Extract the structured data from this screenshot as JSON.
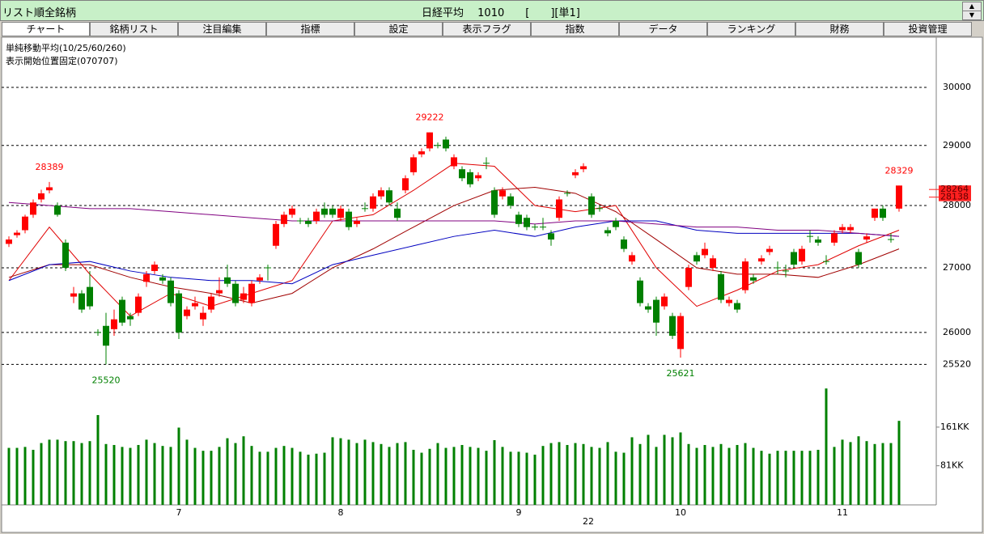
{
  "header": {
    "list_name": "リスト順全銘柄",
    "index_name": "日経平均",
    "code": "1010",
    "unit": "[　　][単1]"
  },
  "tabs": [
    "チャート",
    "銘柄リスト",
    "注目編集",
    "指標",
    "設定",
    "表示フラグ",
    "指数",
    "データ",
    "ランキング",
    "財務",
    "投資管理"
  ],
  "chart_data": {
    "type": "candlestick",
    "title": "単純移動平均(10/25/60/260)",
    "subtitle": "表示開始位置固定(070707)",
    "log_scale": true,
    "grid": true,
    "up_color": "#ff0000",
    "down_color": "#008000",
    "ylim": [
      25284,
      30892
    ],
    "yticks": [
      25520,
      26000,
      27000,
      28000,
      29000,
      30000
    ],
    "categories": [
      null,
      null,
      null,
      null,
      null,
      null,
      null,
      null,
      null,
      null,
      null,
      null,
      null,
      null,
      null,
      null,
      null,
      null,
      null,
      null,
      null,
      "7",
      null,
      null,
      null,
      null,
      null,
      null,
      null,
      null,
      null,
      null,
      null,
      null,
      null,
      null,
      null,
      null,
      null,
      null,
      null,
      "8",
      null,
      null,
      null,
      null,
      null,
      null,
      null,
      null,
      null,
      null,
      null,
      null,
      null,
      null,
      null,
      null,
      null,
      null,
      null,
      null,
      null,
      "9",
      null,
      null,
      null,
      null,
      null,
      null,
      null,
      null,
      null,
      null,
      null,
      null,
      null,
      null,
      null,
      null,
      null,
      null,
      null,
      "10",
      null,
      null,
      null,
      null,
      null,
      null,
      null,
      null,
      null,
      null,
      null,
      null,
      null,
      null,
      null,
      null,
      null,
      null,
      null,
      "11",
      null,
      null,
      null,
      null,
      null,
      null,
      null
    ],
    "year_label": "22",
    "candles": [
      [
        27380,
        27500,
        27330,
        27450
      ],
      [
        27520,
        27600,
        27480,
        27560
      ],
      [
        27600,
        27850,
        27550,
        27820
      ],
      [
        27850,
        28100,
        27800,
        28050
      ],
      [
        28100,
        28260,
        28050,
        28200
      ],
      [
        28250,
        28389,
        28200,
        28300
      ],
      [
        28000,
        28050,
        27820,
        27850
      ],
      [
        27400,
        27450,
        26950,
        27000
      ],
      [
        26550,
        26700,
        26450,
        26600
      ],
      [
        26600,
        26650,
        26300,
        26350
      ],
      [
        26700,
        26950,
        26350,
        26400
      ],
      [
        26000,
        26050,
        25950,
        26000
      ],
      [
        26100,
        26300,
        25520,
        25800
      ],
      [
        26050,
        26350,
        25950,
        26200
      ],
      [
        26500,
        26550,
        26100,
        26150
      ],
      [
        26250,
        26300,
        26100,
        26200
      ],
      [
        26300,
        26600,
        26250,
        26550
      ],
      [
        26780,
        26950,
        26700,
        26900
      ],
      [
        26950,
        27100,
        26900,
        27050
      ],
      [
        26850,
        26900,
        26750,
        26800
      ],
      [
        26800,
        26850,
        26400,
        26450
      ],
      [
        26600,
        26650,
        25900,
        26000
      ],
      [
        26250,
        26400,
        26200,
        26350
      ],
      [
        26400,
        26550,
        26350,
        26450
      ],
      [
        26200,
        26400,
        26100,
        26300
      ],
      [
        26350,
        26600,
        26300,
        26550
      ],
      [
        26600,
        26850,
        26550,
        26650
      ],
      [
        26850,
        27050,
        26700,
        26750
      ],
      [
        26750,
        26800,
        26400,
        26450
      ],
      [
        26500,
        26700,
        26450,
        26600
      ],
      [
        26450,
        26800,
        26400,
        26750
      ],
      [
        26800,
        26900,
        26750,
        26850
      ],
      [
        27000,
        27050,
        26800,
        27000
      ],
      [
        27350,
        27750,
        27300,
        27700
      ],
      [
        27700,
        27900,
        27650,
        27850
      ],
      [
        27850,
        28000,
        27800,
        27950
      ],
      [
        27750,
        27800,
        27700,
        27750
      ],
      [
        27750,
        27800,
        27650,
        27700
      ],
      [
        27750,
        27950,
        27700,
        27900
      ],
      [
        27950,
        28050,
        27800,
        27850
      ],
      [
        27950,
        28000,
        27800,
        27850
      ],
      [
        27800,
        28000,
        27750,
        27950
      ],
      [
        27900,
        27950,
        27600,
        27650
      ],
      [
        27700,
        27800,
        27650,
        27750
      ],
      [
        27950,
        28050,
        27900,
        27950
      ],
      [
        27950,
        28200,
        27900,
        28150
      ],
      [
        28150,
        28300,
        28100,
        28250
      ],
      [
        28250,
        28300,
        28000,
        28050
      ],
      [
        27950,
        28050,
        27750,
        27800
      ],
      [
        28250,
        28500,
        28200,
        28450
      ],
      [
        28550,
        28850,
        28500,
        28800
      ],
      [
        28850,
        28950,
        28800,
        28900
      ],
      [
        28950,
        29222,
        28900,
        29222
      ],
      [
        29000,
        29050,
        28950,
        29000
      ],
      [
        29100,
        29150,
        28900,
        28950
      ],
      [
        28650,
        28850,
        28600,
        28800
      ],
      [
        28600,
        28650,
        28400,
        28450
      ],
      [
        28550,
        28600,
        28300,
        28350
      ],
      [
        28450,
        28550,
        28400,
        28500
      ],
      [
        28700,
        28800,
        28600,
        28700
      ],
      [
        28250,
        28300,
        27800,
        27850
      ],
      [
        28150,
        28300,
        28100,
        28250
      ],
      [
        28150,
        28200,
        27950,
        28000
      ],
      [
        27850,
        27900,
        27650,
        27700
      ],
      [
        27800,
        27850,
        27600,
        27650
      ],
      [
        27650,
        27700,
        27600,
        27650
      ],
      [
        27650,
        27800,
        27600,
        27650
      ],
      [
        27550,
        27600,
        27350,
        27450
      ],
      [
        27800,
        28150,
        27750,
        28100
      ],
      [
        28200,
        28250,
        28150,
        28200
      ],
      [
        28500,
        28600,
        28450,
        28550
      ],
      [
        28600,
        28700,
        28550,
        28650
      ],
      [
        28150,
        28200,
        27800,
        27850
      ],
      [
        27950,
        28000,
        27900,
        27950
      ],
      [
        27600,
        27650,
        27500,
        27550
      ],
      [
        27750,
        27800,
        27600,
        27650
      ],
      [
        27450,
        27500,
        27250,
        27300
      ],
      [
        27100,
        27250,
        27050,
        27200
      ],
      [
        26800,
        26850,
        26400,
        26450
      ],
      [
        26400,
        26450,
        26300,
        26350
      ],
      [
        26500,
        26550,
        25950,
        26150
      ],
      [
        26400,
        26600,
        26350,
        26550
      ],
      [
        26250,
        26300,
        25900,
        25950
      ],
      [
        25750,
        26300,
        25621,
        26250
      ],
      [
        26700,
        27050,
        26650,
        27000
      ],
      [
        27200,
        27250,
        27050,
        27100
      ],
      [
        27200,
        27400,
        27150,
        27300
      ],
      [
        27000,
        27200,
        26950,
        27150
      ],
      [
        26900,
        26950,
        26450,
        26500
      ],
      [
        26450,
        26550,
        26400,
        26500
      ],
      [
        26450,
        26500,
        26300,
        26350
      ],
      [
        26650,
        27150,
        26600,
        27100
      ],
      [
        26850,
        26900,
        26750,
        26800
      ],
      [
        27100,
        27200,
        27050,
        27150
      ],
      [
        27250,
        27350,
        27200,
        27300
      ],
      [
        27000,
        27100,
        26900,
        27000
      ],
      [
        26950,
        27050,
        26850,
        26950
      ],
      [
        27250,
        27300,
        27000,
        27050
      ],
      [
        27100,
        27350,
        27050,
        27300
      ],
      [
        27500,
        27600,
        27400,
        27500
      ],
      [
        27450,
        27500,
        27350,
        27400
      ],
      [
        27100,
        27200,
        27050,
        27100
      ],
      [
        27400,
        27600,
        27350,
        27550
      ],
      [
        27600,
        27700,
        27550,
        27650
      ],
      [
        27600,
        27700,
        27550,
        27650
      ],
      [
        27250,
        27300,
        27000,
        27050
      ],
      [
        27450,
        27550,
        27400,
        27500
      ],
      [
        27800,
        27950,
        27750,
        27950
      ],
      [
        27950,
        28000,
        27750,
        27800
      ],
      [
        27450,
        27550,
        27400,
        27450
      ],
      [
        27950,
        28329,
        27900,
        28329
      ]
    ],
    "high_labels": [
      5,
      52,
      110
    ],
    "low_labels": [
      12,
      83
    ],
    "price_markers": [
      28264,
      28138
    ],
    "marker_color": "#ff2020",
    "series": [
      {
        "name": "10",
        "color": "#e00000",
        "x": [
          0,
          5,
          10,
          15,
          20,
          25,
          30,
          35,
          40,
          45,
          50,
          55,
          60,
          65,
          70,
          75,
          80,
          85,
          90,
          95,
          100,
          105,
          110
        ],
        "values": [
          26800,
          27650,
          26900,
          26250,
          26600,
          26400,
          26600,
          26800,
          27750,
          27850,
          28250,
          28700,
          28650,
          28000,
          27900,
          28000,
          27000,
          26400,
          26650,
          26950,
          27050,
          27350,
          27600
        ]
      },
      {
        "name": "25",
        "color": "#a00000",
        "x": [
          0,
          5,
          10,
          15,
          20,
          25,
          30,
          35,
          40,
          45,
          50,
          55,
          60,
          65,
          70,
          75,
          80,
          85,
          90,
          95,
          100,
          105,
          110
        ],
        "values": [
          26850,
          27050,
          27050,
          26850,
          26700,
          26600,
          26450,
          26600,
          27000,
          27300,
          27650,
          28000,
          28250,
          28300,
          28200,
          27900,
          27450,
          27000,
          26900,
          26900,
          26850,
          27050,
          27300
        ]
      },
      {
        "name": "60",
        "color": "#0000c0",
        "x": [
          0,
          5,
          10,
          15,
          20,
          25,
          30,
          35,
          40,
          45,
          50,
          55,
          60,
          65,
          70,
          75,
          80,
          85,
          90,
          95,
          100,
          105,
          110
        ],
        "values": [
          26800,
          27050,
          27100,
          26950,
          26850,
          26800,
          26800,
          26750,
          27050,
          27200,
          27350,
          27500,
          27600,
          27500,
          27650,
          27750,
          27750,
          27600,
          27550,
          27550,
          27550,
          27550,
          27500
        ]
      },
      {
        "name": "260",
        "color": "#800080",
        "x": [
          0,
          5,
          10,
          15,
          20,
          25,
          30,
          35,
          40,
          45,
          50,
          55,
          60,
          65,
          70,
          75,
          80,
          85,
          90,
          95,
          100,
          105,
          110
        ],
        "values": [
          28050,
          28000,
          27950,
          27950,
          27900,
          27850,
          27800,
          27750,
          27750,
          27750,
          27750,
          27750,
          27750,
          27700,
          27750,
          27750,
          27700,
          27650,
          27650,
          27600,
          27600,
          27550,
          27500
        ]
      }
    ],
    "volume": {
      "color": "#008000",
      "ylim": [
        0,
        258
      ],
      "yticks": [
        {
          "value": 81,
          "label": "81KK"
        },
        {
          "value": 161,
          "label": "161KK"
        }
      ],
      "values": [
        118,
        118,
        120,
        114,
        128,
        135,
        135,
        132,
        132,
        128,
        132,
        186,
        126,
        124,
        120,
        118,
        124,
        135,
        128,
        122,
        120,
        160,
        135,
        118,
        112,
        112,
        120,
        138,
        128,
        142,
        122,
        110,
        110,
        118,
        122,
        118,
        110,
        104,
        106,
        108,
        140,
        138,
        135,
        128,
        135,
        130,
        126,
        120,
        128,
        130,
        114,
        108,
        116,
        128,
        118,
        120,
        124,
        120,
        118,
        112,
        134,
        120,
        110,
        110,
        108,
        104,
        122,
        128,
        130,
        124,
        128,
        126,
        120,
        118,
        130,
        110,
        108,
        140,
        126,
        145,
        120,
        145,
        140,
        150,
        126,
        118,
        124,
        120,
        126,
        118,
        124,
        128,
        118,
        112,
        106,
        112,
        112,
        112,
        112,
        112,
        114,
        241,
        120,
        135,
        130,
        142,
        132,
        126,
        128,
        128,
        174
      ]
    }
  }
}
